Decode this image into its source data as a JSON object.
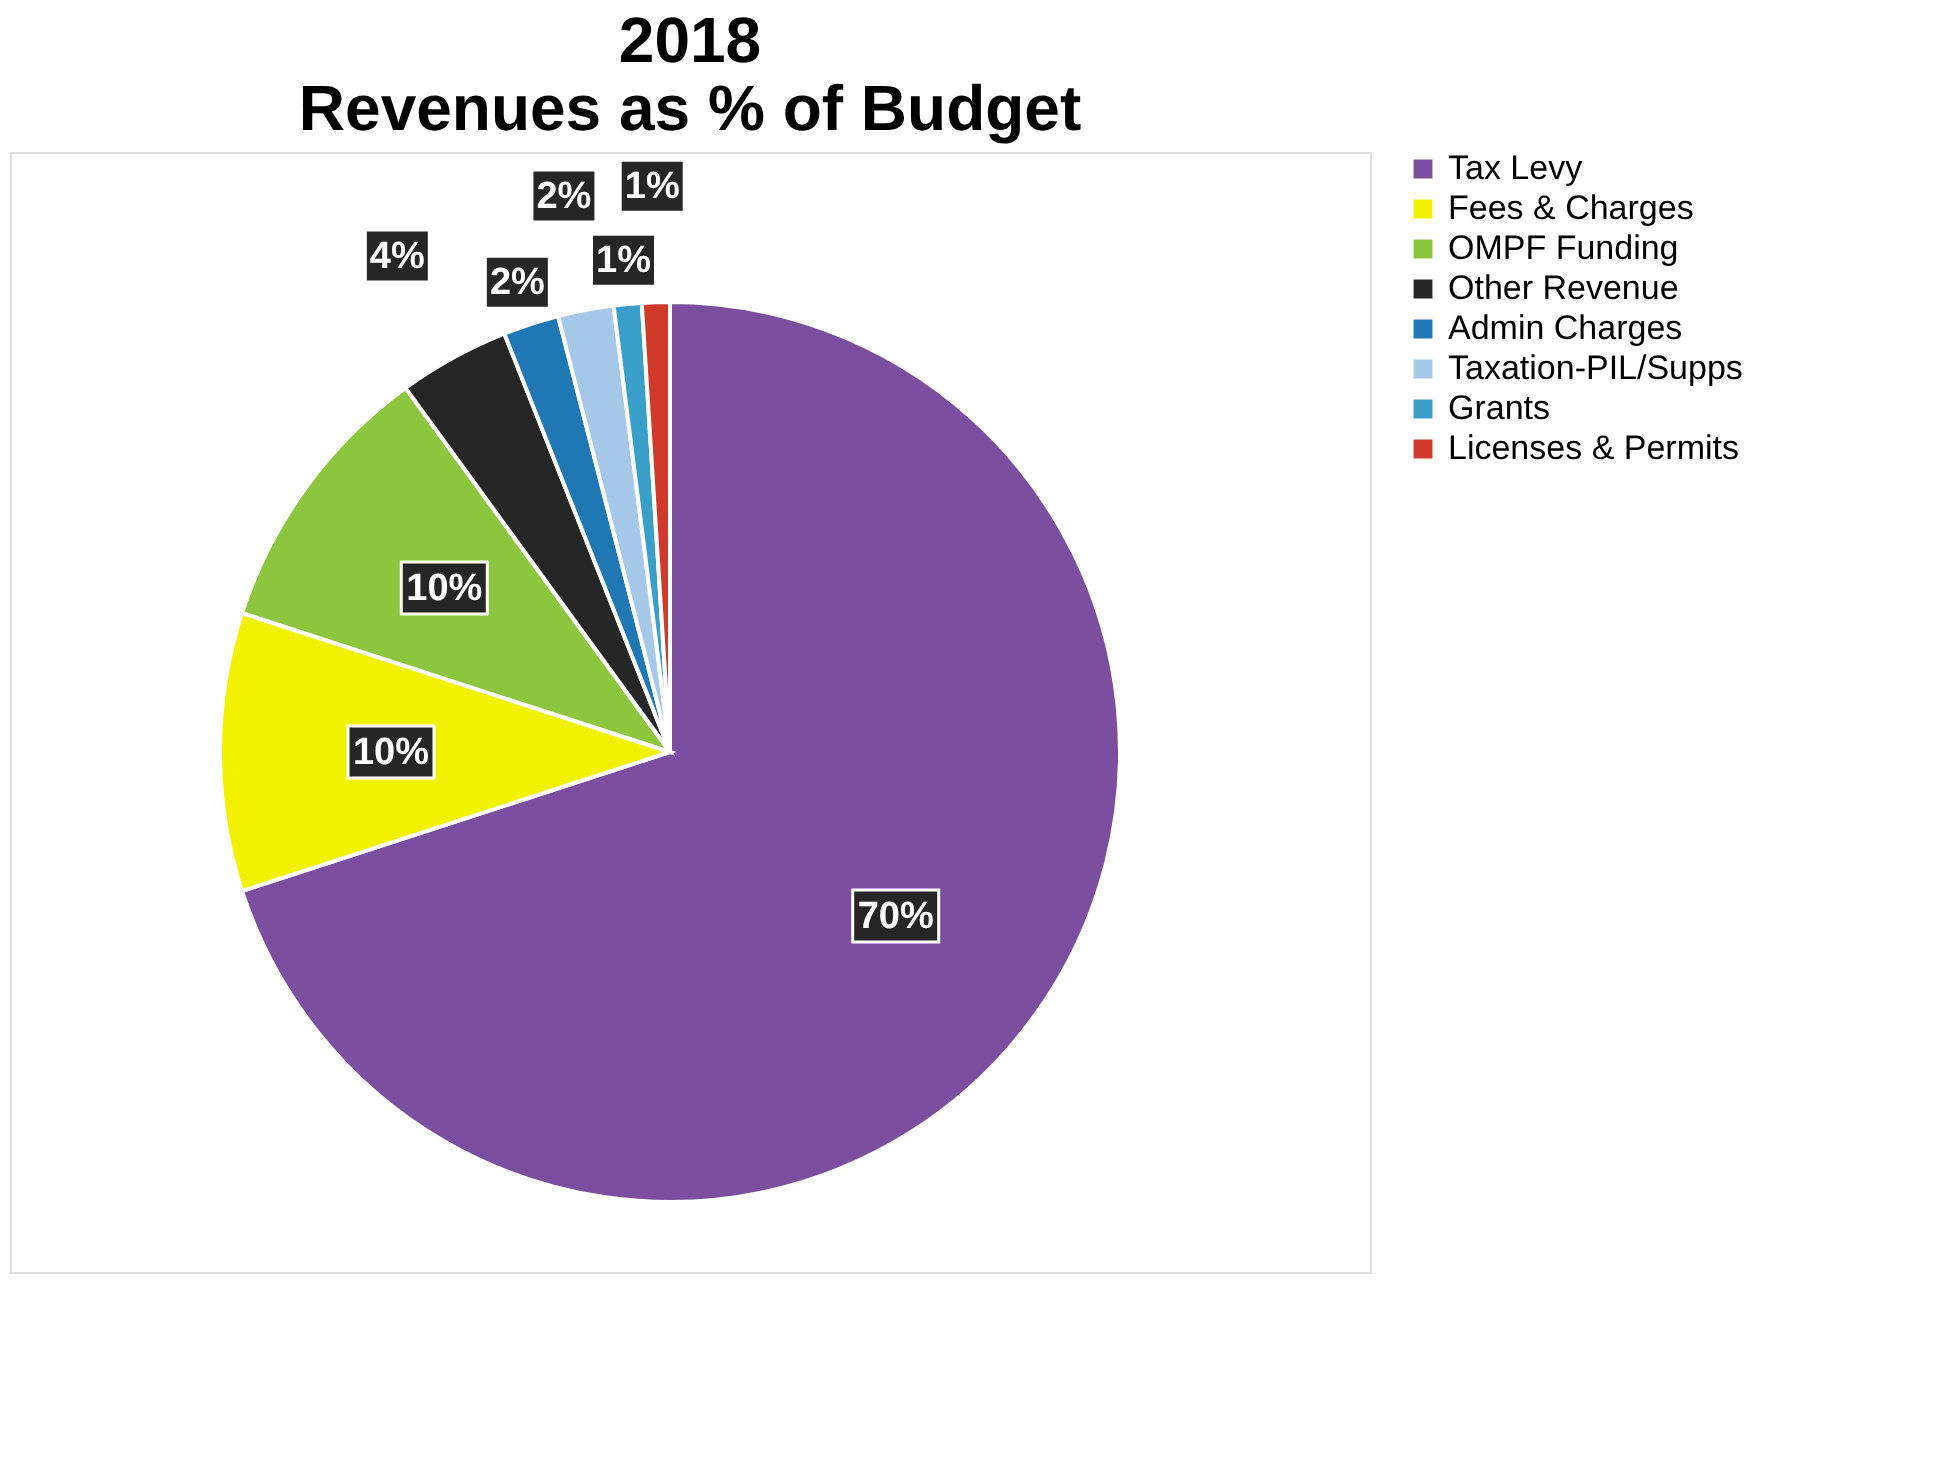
{
  "chart_data": {
    "type": "pie",
    "title": "2018\nRevenues as % of Budget",
    "categories": [
      "Tax Levy",
      "Fees & Charges",
      "OMPF Funding",
      "Other Revenue",
      "Admin Charges",
      "Taxation-PIL/Supps",
      "Grants",
      "Licenses & Permits"
    ],
    "values": [
      70,
      10,
      10,
      4,
      2,
      2,
      1,
      1
    ],
    "value_labels": [
      "70%",
      "10%",
      "10%",
      "4%",
      "2%",
      "2%",
      "1%",
      "1%"
    ],
    "colors": [
      "#7b4ea0",
      "#f2f200",
      "#8cc63f",
      "#262626",
      "#1f78b4",
      "#a6c8e8",
      "#3a9fc8",
      "#d03a2a"
    ],
    "legend": "right"
  }
}
